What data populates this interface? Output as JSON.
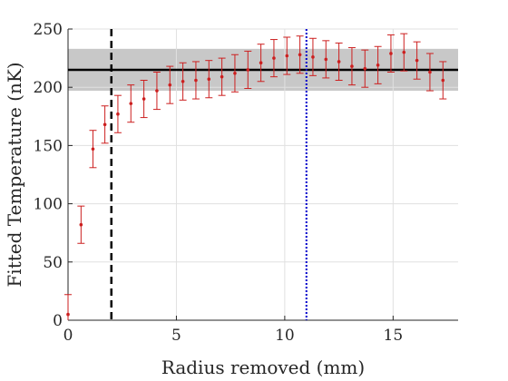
{
  "chart_data": {
    "type": "scatter",
    "title": "",
    "xlabel": "Radius removed (mm)",
    "ylabel": "Fitted Temperature (nK)",
    "xlim": [
      0,
      18
    ],
    "ylim": [
      0,
      250
    ],
    "xticks": [
      "0",
      "5",
      "10",
      "15"
    ],
    "yticks": [
      "0",
      "50",
      "100",
      "150",
      "200",
      "250"
    ],
    "grid": true,
    "legend": "none",
    "series": [
      {
        "marker_color": "#cc1f1f",
        "points": [
          {
            "x": 0.0,
            "y": 5,
            "err": 17
          },
          {
            "x": 0.6,
            "y": 82,
            "err": 16
          },
          {
            "x": 1.15,
            "y": 147,
            "err": 16
          },
          {
            "x": 1.7,
            "y": 168,
            "err": 16
          },
          {
            "x": 2.3,
            "y": 177,
            "err": 16
          },
          {
            "x": 2.9,
            "y": 186,
            "err": 16
          },
          {
            "x": 3.5,
            "y": 190,
            "err": 16
          },
          {
            "x": 4.1,
            "y": 197,
            "err": 16
          },
          {
            "x": 4.7,
            "y": 202,
            "err": 16
          },
          {
            "x": 5.3,
            "y": 205,
            "err": 16
          },
          {
            "x": 5.9,
            "y": 206,
            "err": 16
          },
          {
            "x": 6.5,
            "y": 207,
            "err": 16
          },
          {
            "x": 7.1,
            "y": 209,
            "err": 16
          },
          {
            "x": 7.7,
            "y": 212,
            "err": 16
          },
          {
            "x": 8.3,
            "y": 215,
            "err": 16
          },
          {
            "x": 8.9,
            "y": 221,
            "err": 16
          },
          {
            "x": 9.5,
            "y": 225,
            "err": 16
          },
          {
            "x": 10.1,
            "y": 227,
            "err": 16
          },
          {
            "x": 10.7,
            "y": 228,
            "err": 16
          },
          {
            "x": 11.3,
            "y": 226,
            "err": 16
          },
          {
            "x": 11.9,
            "y": 224,
            "err": 16
          },
          {
            "x": 12.5,
            "y": 222,
            "err": 16
          },
          {
            "x": 13.1,
            "y": 218,
            "err": 16
          },
          {
            "x": 13.7,
            "y": 216,
            "err": 16
          },
          {
            "x": 14.3,
            "y": 219,
            "err": 16
          },
          {
            "x": 14.9,
            "y": 229,
            "err": 16
          },
          {
            "x": 15.5,
            "y": 230,
            "err": 16
          },
          {
            "x": 16.1,
            "y": 223,
            "err": 16
          },
          {
            "x": 16.7,
            "y": 213,
            "err": 16
          },
          {
            "x": 17.3,
            "y": 206,
            "err": 16
          }
        ]
      }
    ],
    "mean_line": {
      "y": 215,
      "color": "#000000"
    },
    "band": {
      "y_low": 197,
      "y_high": 233,
      "color": "#c8c8c8"
    },
    "vlines": [
      {
        "x": 2.0,
        "color": "#000000",
        "style": "dashed"
      },
      {
        "x": 11.0,
        "color": "#0000cc",
        "style": "dotted"
      }
    ]
  }
}
